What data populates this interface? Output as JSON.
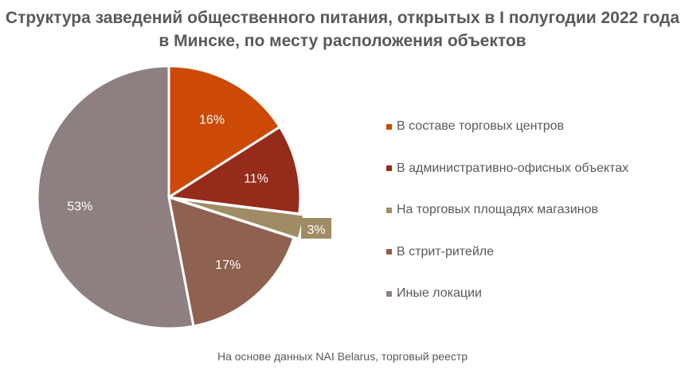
{
  "chart_data": {
    "type": "pie",
    "title": "Структура заведений общественного питания, открытых в I полугодии 2022 года в Минске, по месту расположения объектов",
    "categories": [
      "В составе торговых центров",
      "В административно-офисных объектах",
      "На торговых площадях магазинов",
      "В стрит-ритейле",
      "Иные локации"
    ],
    "values": [
      16,
      11,
      3,
      17,
      53
    ],
    "labels": [
      "16%",
      "11%",
      "3%",
      "17%",
      "53%"
    ],
    "colors": [
      "#CC4A06",
      "#952B1A",
      "#A08C64",
      "#8E6150",
      "#8E8080"
    ],
    "legend_position": "right",
    "source": "На основе данных NAI Belarus, торговый реестр"
  }
}
